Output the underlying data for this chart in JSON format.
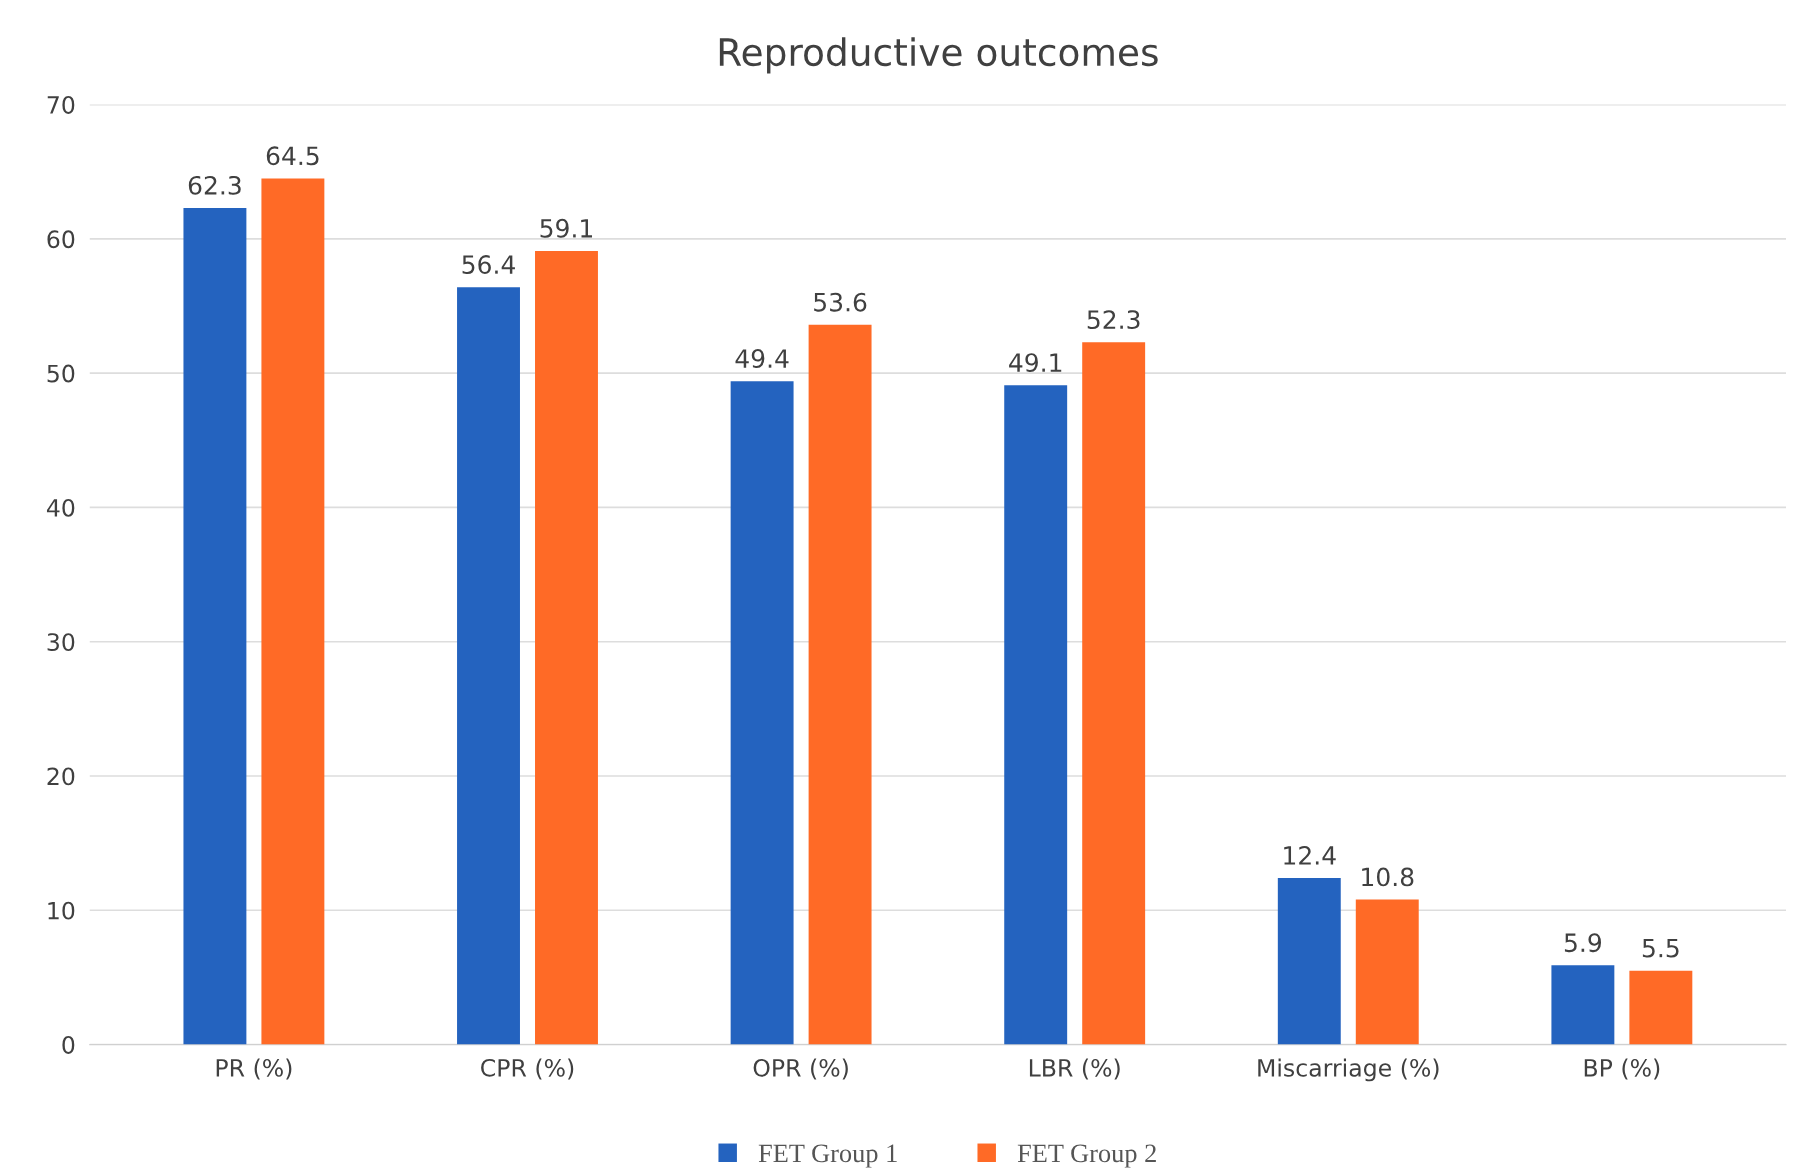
{
  "chart_data": {
    "type": "bar",
    "title": "Reproductive outcomes",
    "categories": [
      "PR (%)",
      "CPR (%)",
      "OPR (%)",
      "LBR (%)",
      "Miscarriage (%)",
      "BP (%)"
    ],
    "series": [
      {
        "name": "FET Group 1",
        "color": "#2463bf",
        "values": [
          62.3,
          56.4,
          49.4,
          49.1,
          12.4,
          5.9
        ]
      },
      {
        "name": "FET Group 2",
        "color": "#ff6a26",
        "values": [
          64.5,
          59.1,
          53.6,
          52.3,
          10.8,
          5.5
        ]
      }
    ],
    "ylim": [
      0,
      70
    ],
    "yticks": [
      0,
      10,
      20,
      30,
      40,
      50,
      60,
      70
    ],
    "grid": "y",
    "legend": "bottom",
    "data_labels": true
  }
}
